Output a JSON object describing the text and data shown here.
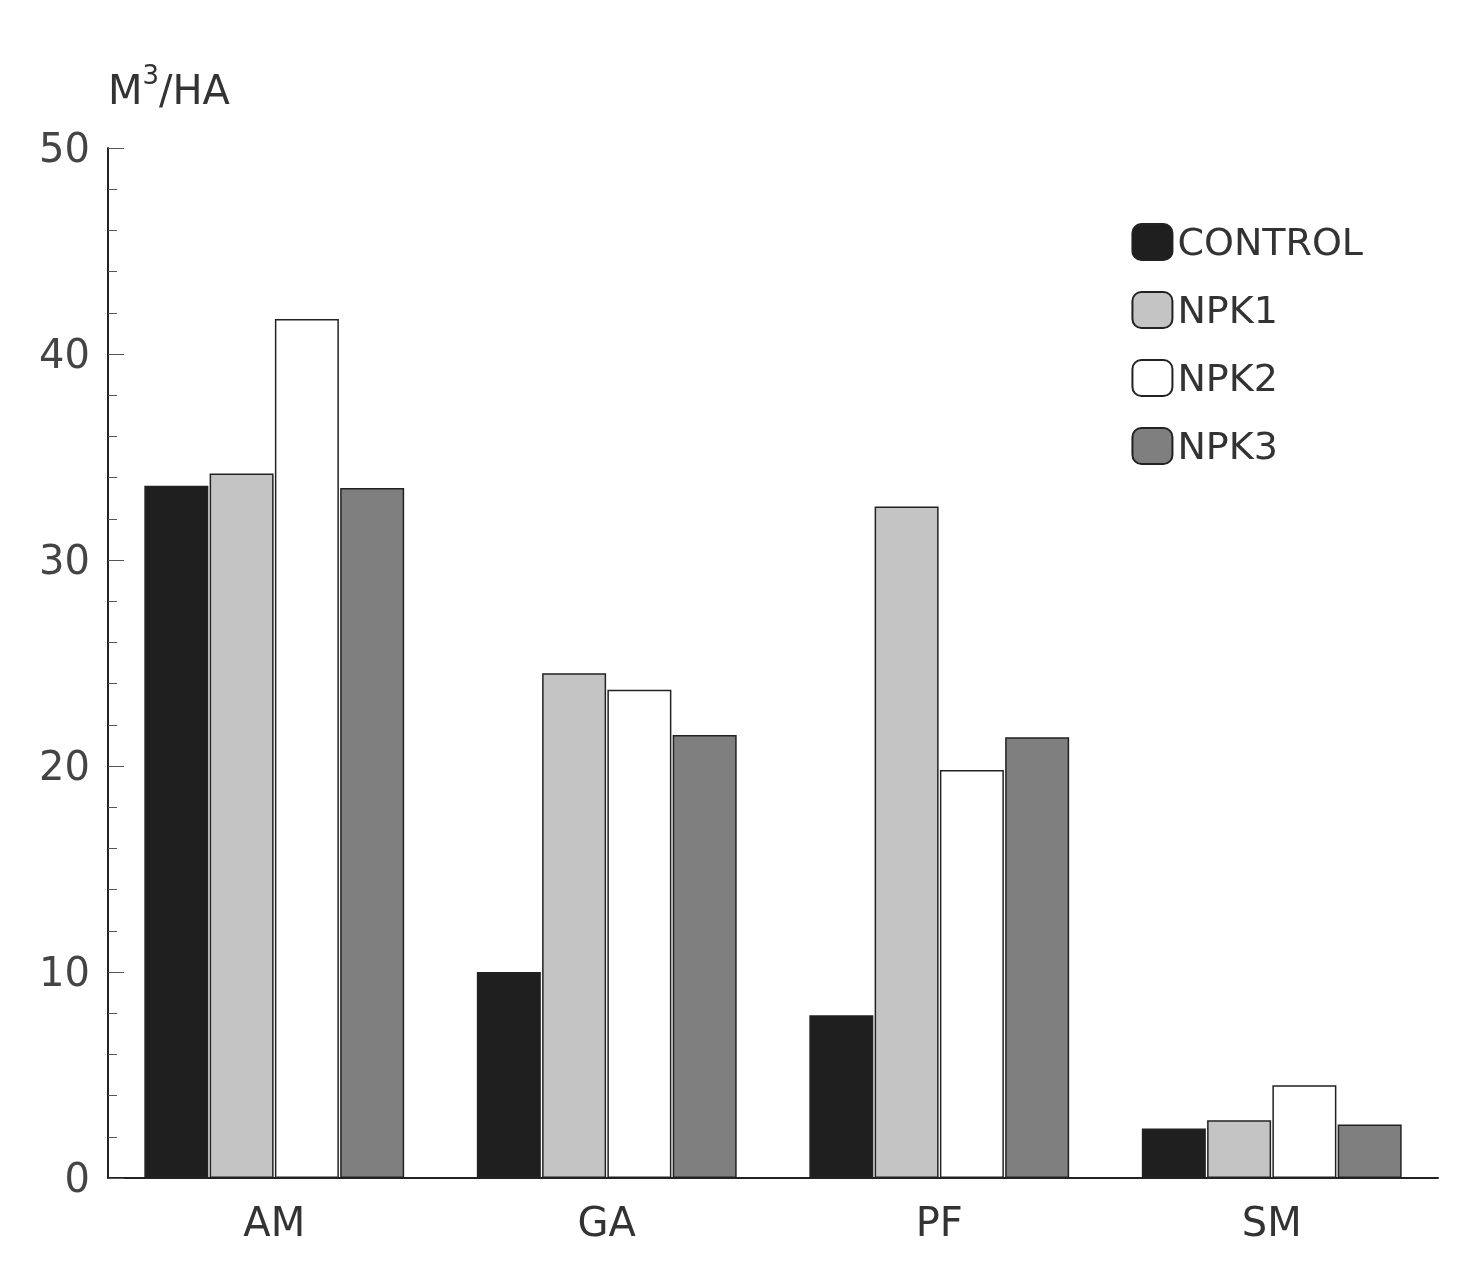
{
  "chart_data": {
    "type": "bar",
    "ylabel": "M$^{3}$/HA",
    "categories": [
      "AM",
      "GA",
      "PF",
      "SM"
    ],
    "series": [
      {
        "name": "CONTROL",
        "color": "#1f1f1f",
        "values": [
          33.6,
          10,
          7.9,
          2.4
        ]
      },
      {
        "name": "NPK1",
        "color": "#c4c4c4",
        "values": [
          34.2,
          24.5,
          32.6,
          2.8
        ]
      },
      {
        "name": "NPK2",
        "color": "#ffffff",
        "values": [
          41.7,
          23.7,
          19.8,
          4.5
        ]
      },
      {
        "name": "NPK3",
        "color": "#7f7f7f",
        "values": [
          33.5,
          21.5,
          21.4,
          2.6
        ]
      }
    ],
    "ylim": [
      0,
      50
    ],
    "yticks": [
      0,
      10,
      20,
      30,
      40,
      50
    ],
    "grid": false,
    "legend": "top right"
  }
}
